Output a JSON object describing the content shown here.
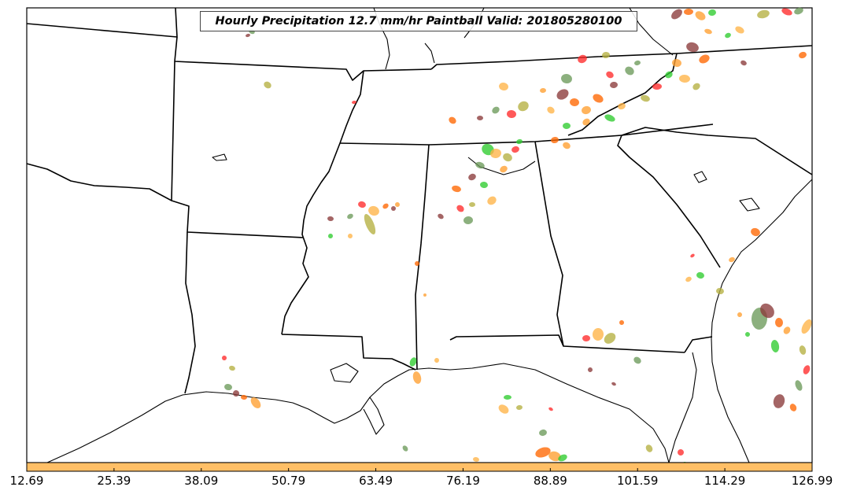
{
  "map": {
    "title": "Hourly Precipitation 12.7 mm/hr Paintball Valid: 201805280100",
    "colorbar": {
      "color": "#ffbf66",
      "tick_labels": [
        "12.69",
        "25.39",
        "38.09",
        "50.79",
        "63.49",
        "76.19",
        "88.89",
        "101.59",
        "114.29",
        "126.99"
      ]
    },
    "paintball_colors": [
      "#ff6600",
      "#ff2a2a",
      "#2ecc2e",
      "#8b3a3a",
      "#b5b040",
      "#ff9f30",
      "#6b9a5a",
      "#ffb347"
    ]
  }
}
